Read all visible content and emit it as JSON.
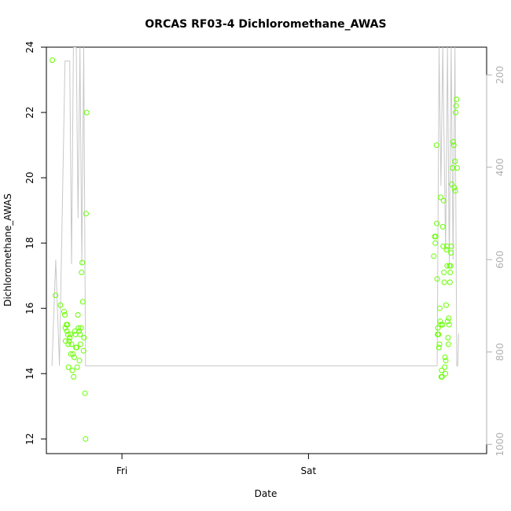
{
  "chart_data": {
    "type": "scatter",
    "title": "ORCAS RF03-4 Dichloromethane_AWAS",
    "xlabel": "Date",
    "ylabel": "Dichloromethane_AWAS",
    "x_ticks": [
      {
        "label": "Fri",
        "value": 0.0
      },
      {
        "label": "Sat",
        "value": 1.0
      }
    ],
    "xlim": [
      -0.405,
      1.955
    ],
    "ylim": [
      11.55,
      24.0
    ],
    "y_ticks": [
      12,
      14,
      16,
      18,
      20,
      22,
      24
    ],
    "y2_ticks": [
      200,
      400,
      600,
      800,
      1000
    ],
    "y2_reversed": true,
    "y2_lim": [
      1020,
      140
    ],
    "colors": {
      "points": "#66ff00",
      "line": "#c8c8c8"
    },
    "series": [
      {
        "values": [
          [
            -0.373,
            23.6
          ],
          [
            -0.356,
            16.4
          ],
          [
            -0.33,
            16.1
          ],
          [
            -0.31,
            15.9
          ],
          [
            -0.306,
            15.8
          ],
          [
            -0.304,
            15.4
          ],
          [
            -0.302,
            15.0
          ],
          [
            -0.298,
            15.5
          ],
          [
            -0.295,
            15.3
          ],
          [
            -0.292,
            15.5
          ],
          [
            -0.29,
            15.2
          ],
          [
            -0.288,
            14.9
          ],
          [
            -0.286,
            14.2
          ],
          [
            -0.283,
            15.0
          ],
          [
            -0.28,
            15.1
          ],
          [
            -0.276,
            15.2
          ],
          [
            -0.274,
            14.6
          ],
          [
            -0.27,
            14.9
          ],
          [
            -0.266,
            14.1
          ],
          [
            -0.262,
            14.6
          ],
          [
            -0.259,
            13.9
          ],
          [
            -0.256,
            14.5
          ],
          [
            -0.252,
            15.3
          ],
          [
            -0.249,
            15.2
          ],
          [
            -0.246,
            14.8
          ],
          [
            -0.243,
            14.8
          ],
          [
            -0.24,
            14.2
          ],
          [
            -0.236,
            15.8
          ],
          [
            -0.233,
            15.4
          ],
          [
            -0.23,
            15.3
          ],
          [
            -0.228,
            14.4
          ],
          [
            -0.225,
            15.2
          ],
          [
            -0.222,
            14.9
          ],
          [
            -0.219,
            15.4
          ],
          [
            -0.216,
            17.1
          ],
          [
            -0.213,
            17.4
          ],
          [
            -0.21,
            16.2
          ],
          [
            -0.206,
            14.7
          ],
          [
            -0.203,
            15.1
          ],
          [
            -0.198,
            13.4
          ],
          [
            -0.195,
            12.0
          ],
          [
            -0.192,
            18.9
          ],
          [
            -0.189,
            22.0
          ],
          [
            1.672,
            17.6
          ],
          [
            1.677,
            18.2
          ],
          [
            1.68,
            18.0
          ],
          [
            1.682,
            18.2
          ],
          [
            1.686,
            21.0
          ],
          [
            1.688,
            18.6
          ],
          [
            1.69,
            16.9
          ],
          [
            1.692,
            15.2
          ],
          [
            1.694,
            15.4
          ],
          [
            1.697,
            15.2
          ],
          [
            1.699,
            14.8
          ],
          [
            1.702,
            14.9
          ],
          [
            1.704,
            16.0
          ],
          [
            1.706,
            15.6
          ],
          [
            1.708,
            19.4
          ],
          [
            1.71,
            15.5
          ],
          [
            1.712,
            13.9
          ],
          [
            1.714,
            14.1
          ],
          [
            1.716,
            13.9
          ],
          [
            1.718,
            15.5
          ],
          [
            1.72,
            18.5
          ],
          [
            1.722,
            17.9
          ],
          [
            1.724,
            19.3
          ],
          [
            1.726,
            17.1
          ],
          [
            1.728,
            16.8
          ],
          [
            1.73,
            14.2
          ],
          [
            1.732,
            14.5
          ],
          [
            1.734,
            14.0
          ],
          [
            1.736,
            14.4
          ],
          [
            1.738,
            16.1
          ],
          [
            1.74,
            17.8
          ],
          [
            1.742,
            17.9
          ],
          [
            1.744,
            17.3
          ],
          [
            1.746,
            15.6
          ],
          [
            1.748,
            15.1
          ],
          [
            1.75,
            14.9
          ],
          [
            1.752,
            15.7
          ],
          [
            1.754,
            15.5
          ],
          [
            1.756,
            17.3
          ],
          [
            1.758,
            16.8
          ],
          [
            1.76,
            17.1
          ],
          [
            1.762,
            17.3
          ],
          [
            1.764,
            17.7
          ],
          [
            1.766,
            17.9
          ],
          [
            1.768,
            19.8
          ],
          [
            1.772,
            20.3
          ],
          [
            1.776,
            21.1
          ],
          [
            1.779,
            21.0
          ],
          [
            1.782,
            19.7
          ],
          [
            1.785,
            20.5
          ],
          [
            1.787,
            19.6
          ],
          [
            1.789,
            22.0
          ],
          [
            1.791,
            22.2
          ],
          [
            1.794,
            22.4
          ],
          [
            1.797,
            20.3
          ]
        ]
      },
      {
        "axis": "y2",
        "values": [
          [
            -0.375,
            830
          ],
          [
            -0.355,
            600
          ],
          [
            -0.335,
            830
          ],
          [
            -0.305,
            170
          ],
          [
            -0.3,
            170
          ],
          [
            -0.295,
            170
          ],
          [
            -0.29,
            170
          ],
          [
            -0.285,
            170
          ],
          [
            -0.28,
            170
          ],
          [
            -0.27,
            610
          ],
          [
            -0.26,
            140
          ],
          [
            -0.255,
            140
          ],
          [
            -0.245,
            140
          ],
          [
            -0.235,
            510
          ],
          [
            -0.225,
            140
          ],
          [
            -0.215,
            610
          ],
          [
            -0.205,
            140
          ],
          [
            -0.195,
            830
          ],
          [
            1.66,
            830
          ],
          [
            1.69,
            830
          ],
          [
            1.7,
            140
          ],
          [
            1.71,
            440
          ],
          [
            1.72,
            140
          ],
          [
            1.735,
            580
          ],
          [
            1.745,
            140
          ],
          [
            1.755,
            610
          ],
          [
            1.765,
            140
          ],
          [
            1.775,
            600
          ],
          [
            1.785,
            140
          ],
          [
            1.795,
            830
          ],
          [
            1.8,
            830
          ],
          [
            1.805,
            760
          ]
        ]
      }
    ]
  }
}
